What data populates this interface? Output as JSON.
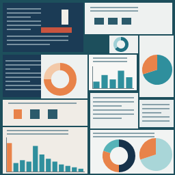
{
  "chart_data": [
    {
      "type": "bar",
      "categories": [
        null,
        null,
        null,
        null,
        null
      ],
      "values": [
        3,
        6,
        4,
        8,
        5
      ],
      "color": "#2f8f9d",
      "ylim": [
        0,
        10
      ],
      "yticks": [
        0,
        5,
        10
      ],
      "grid": false,
      "tick_labels": false
    },
    {
      "type": "bar",
      "categories": [
        null,
        null,
        null,
        null,
        null,
        null,
        null,
        null,
        null,
        null,
        null,
        null
      ],
      "values": [
        10,
        3,
        4,
        3.5,
        9,
        6,
        4.5,
        3.5,
        2.5,
        2,
        1.5,
        1
      ],
      "colors": [
        "#e8834a",
        "#2f8f9d",
        "#2f8f9d",
        "#2f8f9d",
        "#2f8f9d",
        "#2f8f9d",
        "#2f8f9d",
        "#2f8f9d",
        "#2f8f9d",
        "#2f8f9d",
        "#2f8f9d",
        "#2f8f9d"
      ],
      "ylim": [
        0,
        12
      ],
      "yticks": [
        0,
        4,
        8,
        12
      ],
      "grid": false,
      "tick_labels": false
    },
    {
      "type": "doughnut",
      "values": [
        75,
        25
      ],
      "colors": [
        "#e8834a",
        "#f3c9a8"
      ]
    },
    {
      "type": "pie",
      "values": [
        70,
        30
      ],
      "colors": [
        "#2f8f9d",
        "#e8834a"
      ]
    },
    {
      "type": "doughnut",
      "values": [
        65,
        35
      ],
      "colors": [
        "#1f6f80",
        "#9fd0d6"
      ]
    },
    {
      "type": "doughnut",
      "values": [
        50,
        30,
        20
      ],
      "colors": [
        "#16324a",
        "#e8834a",
        "#56b3b8"
      ]
    },
    {
      "type": "pie",
      "values": [
        70,
        30
      ],
      "colors": [
        "#a9d6d8",
        "#e8834a"
      ]
    }
  ]
}
